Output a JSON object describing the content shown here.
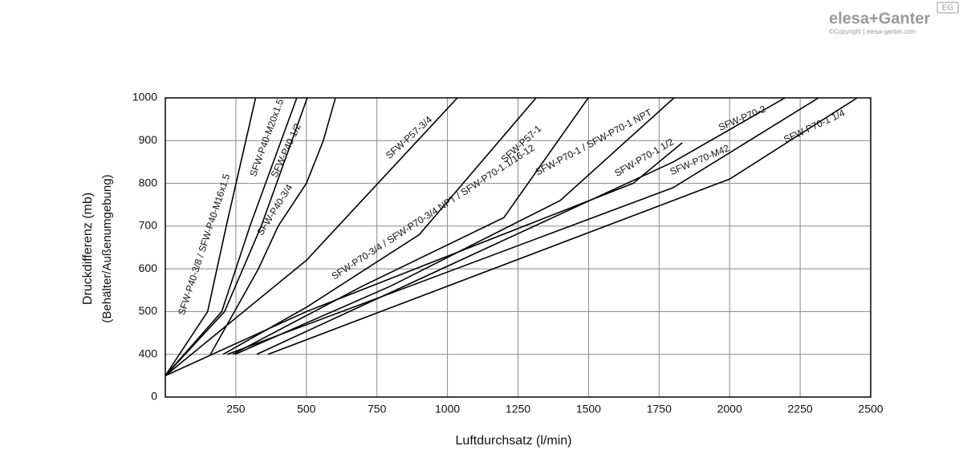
{
  "logo": {
    "brand": "elesa+Ganter",
    "badge": "EG",
    "copyright": "©Copyright | elesa-ganter.com"
  },
  "chart_data": {
    "type": "line",
    "xlabel": "Luftdurchsatz (l/min)",
    "ylabel": [
      "Druckdifferenz (mb)",
      "(Behälter/Außenumgebung)"
    ],
    "xlim": [
      0,
      2500
    ],
    "xticks": [
      250,
      500,
      750,
      1000,
      1250,
      1500,
      1750,
      2000,
      2250,
      2500
    ],
    "ylim": [
      300,
      1000
    ],
    "yticks": [
      {
        "value": 300,
        "label": "0"
      },
      400,
      500,
      600,
      700,
      800,
      900,
      1000
    ],
    "grid": true,
    "color": "#000000",
    "series": [
      {
        "name": "SFW-P40-3/8 / SFW-P40-M16x1.5",
        "x": [
          0,
          150,
          216,
          320
        ],
        "values": [
          350,
          500,
          700,
          1000
        ]
      },
      {
        "name": "SFW-P40-M20x1.5",
        "x": [
          0,
          200,
          300,
          466
        ],
        "values": [
          350,
          500,
          700,
          1000
        ]
      },
      {
        "name": "SFW-P40-1/2",
        "x": [
          0,
          210,
          340,
          503
        ],
        "values": [
          350,
          500,
          700,
          1000
        ]
      },
      {
        "name": "SFW-P40-3/4",
        "x": [
          160,
          330,
          400,
          500,
          560,
          603
        ],
        "values": [
          400,
          600,
          700,
          800,
          900,
          1000
        ]
      },
      {
        "name": "SFW-P57-3/4",
        "x": [
          0,
          500,
          1035
        ],
        "values": [
          350,
          620,
          1000
        ]
      },
      {
        "name": "SFW-P70-3/4 / SFW-P70-3/4 NPT / SFW-P70-1.1/16-12",
        "x": [
          205,
          500,
          900,
          1314
        ],
        "values": [
          400,
          510,
          680,
          1000
        ]
      },
      {
        "name": "SFW-P57-1",
        "x": [
          239,
          700,
          1200,
          1499
        ],
        "values": [
          400,
          560,
          720,
          1000
        ]
      },
      {
        "name": "SFW-P70-1 / SFW-P70-1 NPT",
        "x": [
          247,
          800,
          1400,
          1803
        ],
        "values": [
          400,
          560,
          760,
          1000
        ]
      },
      {
        "name": "SFW-P70-1 1/2",
        "x": [
          0,
          500,
          1658,
          1832
        ],
        "values": [
          350,
          500,
          800,
          895
        ]
      },
      {
        "name": "SFW-P70-2",
        "x": [
          324,
          1800,
          2196
        ],
        "values": [
          400,
          850,
          1000
        ]
      },
      {
        "name": "SFW-P70-M42",
        "x": [
          220,
          1800,
          2315
        ],
        "values": [
          400,
          790,
          1000
        ]
      },
      {
        "name": "SFW-P70-1 1/4",
        "x": [
          364,
          2000,
          2452
        ],
        "values": [
          400,
          810,
          1000
        ]
      }
    ]
  }
}
